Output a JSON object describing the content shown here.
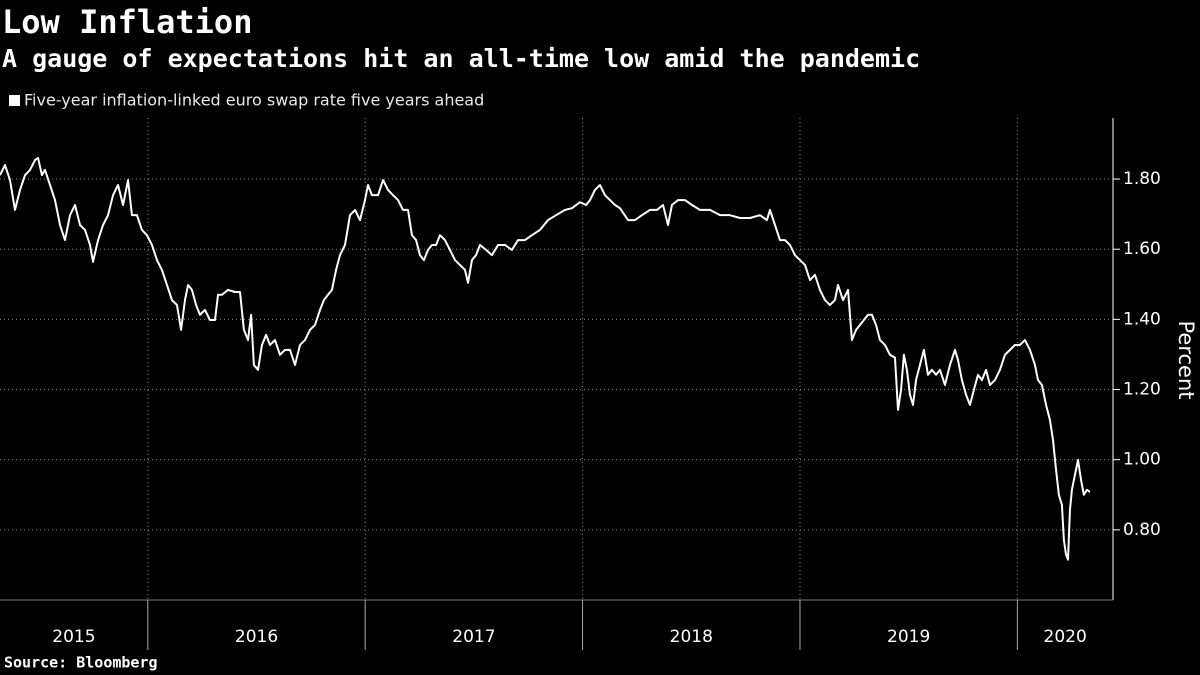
{
  "chart_data": {
    "type": "line",
    "title": "Low Inflation",
    "subtitle": "A gauge of expectations hit an all-time low amid the pandemic",
    "source": "Source: Bloomberg",
    "y_label": "Percent",
    "x": [
      2015.32,
      2015.343,
      2015.366,
      2015.389,
      2015.412,
      2015.435,
      2015.458,
      2015.481,
      2015.495,
      2015.513,
      2015.527,
      2015.55,
      2015.573,
      2015.596,
      2015.619,
      2015.642,
      2015.665,
      2015.688,
      2015.711,
      2015.734,
      2015.748,
      2015.771,
      2015.794,
      2015.817,
      2015.84,
      2015.863,
      2015.886,
      2015.909,
      2015.927,
      2015.95,
      2015.973,
      2015.996,
      2016.019,
      2016.042,
      2016.065,
      2016.088,
      2016.111,
      2016.134,
      2016.153,
      2016.171,
      2016.185,
      2016.203,
      2016.222,
      2016.24,
      2016.263,
      2016.286,
      2016.309,
      2016.323,
      2016.341,
      2016.369,
      2016.401,
      2016.424,
      2016.442,
      2016.461,
      2016.475,
      2016.488,
      2016.507,
      2016.525,
      2016.544,
      2016.562,
      2016.585,
      2016.608,
      2016.631,
      2016.654,
      2016.677,
      2016.7,
      2016.723,
      2016.746,
      2016.769,
      2016.792,
      2016.81,
      2016.829,
      2016.847,
      2016.866,
      2016.884,
      2016.907,
      2016.93,
      2016.953,
      2016.976,
      2016.999,
      2017.013,
      2017.031,
      2017.059,
      2017.082,
      2017.105,
      2017.128,
      2017.151,
      2017.174,
      2017.197,
      2017.215,
      2017.234,
      2017.252,
      2017.27,
      2017.289,
      2017.307,
      2017.326,
      2017.344,
      2017.367,
      2017.39,
      2017.413,
      2017.436,
      2017.459,
      2017.473,
      2017.491,
      2017.51,
      2017.528,
      2017.556,
      2017.583,
      2017.611,
      2017.643,
      2017.675,
      2017.703,
      2017.735,
      2017.767,
      2017.804,
      2017.841,
      2017.878,
      2017.919,
      2017.951,
      2017.988,
      2018.016,
      2018.034,
      2018.057,
      2018.08,
      2018.103,
      2018.126,
      2018.149,
      2018.172,
      2018.209,
      2018.241,
      2018.273,
      2018.31,
      2018.342,
      2018.37,
      2018.393,
      2018.411,
      2018.439,
      2018.471,
      2018.503,
      2018.54,
      2018.586,
      2018.632,
      2018.678,
      2018.724,
      2018.77,
      2018.816,
      2018.848,
      2018.862,
      2018.885,
      2018.908,
      2018.931,
      2018.954,
      2018.977,
      2019.0,
      2019.023,
      2019.046,
      2019.069,
      2019.092,
      2019.115,
      2019.138,
      2019.161,
      2019.175,
      2019.198,
      2019.221,
      2019.239,
      2019.258,
      2019.276,
      2019.294,
      2019.313,
      2019.331,
      2019.35,
      2019.368,
      2019.391,
      2019.414,
      2019.437,
      2019.451,
      2019.465,
      2019.478,
      2019.492,
      2019.506,
      2019.52,
      2019.534,
      2019.552,
      2019.57,
      2019.589,
      2019.607,
      2019.626,
      2019.644,
      2019.667,
      2019.69,
      2019.713,
      2019.727,
      2019.745,
      2019.764,
      2019.782,
      2019.8,
      2019.819,
      2019.837,
      2019.856,
      2019.874,
      2019.897,
      2019.92,
      2019.943,
      2019.966,
      2019.989,
      2020.012,
      2020.035,
      2020.058,
      2020.081,
      2020.095,
      2020.113,
      2020.132,
      2020.15,
      2020.164,
      2020.178,
      2020.191,
      2020.205,
      2020.214,
      2020.224,
      2020.233,
      2020.242,
      2020.251,
      2020.265,
      2020.279,
      2020.293,
      2020.306,
      2020.32,
      2020.334
    ],
    "series": [
      {
        "name": "Five-year inflation-linked euro swap rate five years ahead",
        "color": "#ffffff",
        "values": [
          1.811,
          1.84,
          1.797,
          1.712,
          1.769,
          1.811,
          1.826,
          1.854,
          1.86,
          1.811,
          1.826,
          1.783,
          1.74,
          1.669,
          1.626,
          1.697,
          1.726,
          1.669,
          1.655,
          1.612,
          1.564,
          1.626,
          1.669,
          1.697,
          1.754,
          1.783,
          1.726,
          1.797,
          1.697,
          1.697,
          1.655,
          1.64,
          1.612,
          1.569,
          1.541,
          1.498,
          1.455,
          1.441,
          1.37,
          1.455,
          1.498,
          1.484,
          1.441,
          1.413,
          1.427,
          1.398,
          1.398,
          1.47,
          1.47,
          1.484,
          1.478,
          1.478,
          1.37,
          1.341,
          1.413,
          1.27,
          1.256,
          1.327,
          1.356,
          1.327,
          1.341,
          1.299,
          1.313,
          1.313,
          1.27,
          1.327,
          1.341,
          1.37,
          1.384,
          1.427,
          1.455,
          1.47,
          1.484,
          1.541,
          1.583,
          1.612,
          1.697,
          1.712,
          1.683,
          1.74,
          1.783,
          1.754,
          1.754,
          1.797,
          1.769,
          1.754,
          1.74,
          1.712,
          1.712,
          1.64,
          1.626,
          1.583,
          1.569,
          1.598,
          1.612,
          1.612,
          1.64,
          1.626,
          1.598,
          1.569,
          1.555,
          1.541,
          1.504,
          1.569,
          1.583,
          1.612,
          1.598,
          1.583,
          1.612,
          1.612,
          1.598,
          1.626,
          1.626,
          1.64,
          1.655,
          1.683,
          1.697,
          1.712,
          1.717,
          1.734,
          1.726,
          1.74,
          1.769,
          1.783,
          1.754,
          1.74,
          1.726,
          1.717,
          1.683,
          1.683,
          1.697,
          1.712,
          1.712,
          1.726,
          1.669,
          1.726,
          1.74,
          1.74,
          1.726,
          1.712,
          1.712,
          1.697,
          1.697,
          1.689,
          1.689,
          1.697,
          1.683,
          1.712,
          1.669,
          1.626,
          1.626,
          1.612,
          1.583,
          1.569,
          1.555,
          1.512,
          1.527,
          1.484,
          1.455,
          1.441,
          1.455,
          1.498,
          1.455,
          1.484,
          1.341,
          1.37,
          1.384,
          1.398,
          1.413,
          1.413,
          1.384,
          1.341,
          1.327,
          1.299,
          1.291,
          1.142,
          1.199,
          1.299,
          1.256,
          1.185,
          1.156,
          1.227,
          1.27,
          1.313,
          1.242,
          1.256,
          1.242,
          1.256,
          1.213,
          1.27,
          1.313,
          1.284,
          1.227,
          1.185,
          1.156,
          1.199,
          1.242,
          1.227,
          1.256,
          1.213,
          1.227,
          1.256,
          1.299,
          1.313,
          1.327,
          1.327,
          1.341,
          1.313,
          1.27,
          1.227,
          1.213,
          1.156,
          1.113,
          1.056,
          0.971,
          0.9,
          0.871,
          0.771,
          0.729,
          0.715,
          0.857,
          0.914,
          0.957,
          0.999,
          0.942,
          0.9,
          0.914,
          0.908
        ]
      }
    ],
    "xlim": [
      2015.32,
      2020.44
    ],
    "xticks": [
      2015,
      2016,
      2017,
      2018,
      2019,
      2020
    ],
    "ylim": [
      0.6,
      1.974
    ],
    "yticks": [
      {
        "value": 0.8,
        "label": "0.80"
      },
      {
        "value": 1.0,
        "label": "1.00"
      },
      {
        "value": 1.2,
        "label": "1.20"
      },
      {
        "value": 1.4,
        "label": "1.40"
      },
      {
        "value": 1.6,
        "label": "1.60"
      },
      {
        "value": 1.8,
        "label": "1.80"
      }
    ],
    "grid": true
  }
}
